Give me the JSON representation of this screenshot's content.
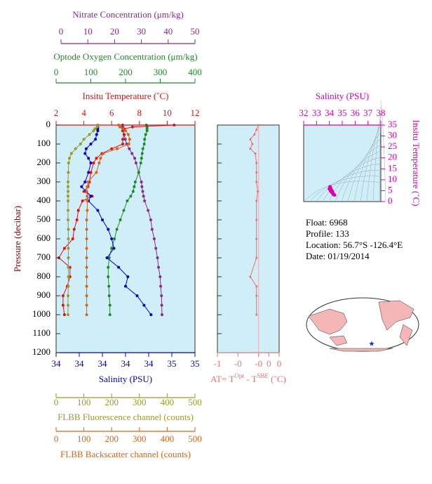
{
  "chart_data": [
    {
      "type": "profile",
      "y_label": "Pressure (decibar)",
      "ylim": [
        0,
        1200
      ],
      "yticks": [
        0,
        100,
        200,
        300,
        400,
        500,
        600,
        700,
        800,
        900,
        1000,
        1100,
        1200
      ],
      "axes": [
        {
          "title": "Nitrate Concentration (μm/kg)",
          "color": "#8b2a8b",
          "xlim": [
            0,
            50
          ],
          "xticks": [
            0,
            10,
            20,
            30,
            40,
            50
          ],
          "pressure": [
            0,
            10,
            20,
            30,
            50,
            75,
            100,
            125,
            150,
            175,
            200,
            250,
            300,
            325,
            350,
            375,
            400,
            450,
            500,
            550,
            600,
            650,
            700,
            750,
            800,
            850,
            900,
            950,
            1000
          ],
          "values": [
            23,
            23,
            23,
            23,
            23.5,
            24,
            24.5,
            25.5,
            26.5,
            27.5,
            28,
            29,
            30,
            30.2,
            30.5,
            30.8,
            31.2,
            32.5,
            33.5,
            34,
            34.8,
            35.4,
            36,
            36.4,
            37,
            37.2,
            37.5,
            37.6,
            37.7
          ]
        },
        {
          "title": "Optode Oxygen Concentration (μm/kg)",
          "color": "#1f8a2a",
          "xlim": [
            0,
            400
          ],
          "xticks": [
            0,
            100,
            200,
            300,
            400
          ],
          "pressure": [
            0,
            10,
            20,
            30,
            50,
            75,
            100,
            125,
            150,
            175,
            200,
            250,
            300,
            325,
            350,
            375,
            400,
            450,
            500,
            550,
            600,
            650,
            700,
            750,
            800,
            850,
            900,
            950,
            1000
          ],
          "values": [
            260,
            262,
            262,
            262,
            258,
            255,
            254,
            250,
            248,
            246,
            244,
            238,
            228,
            225,
            222,
            215,
            205,
            195,
            185,
            175,
            168,
            160,
            153,
            150,
            150,
            152,
            153,
            155,
            155
          ]
        },
        {
          "title": "Insitu Temperature (˚C)",
          "color": "#e01010",
          "xlim": [
            2,
            12
          ],
          "xticks": [
            2,
            4,
            6,
            8,
            10,
            12
          ],
          "pressure": [
            0,
            10,
            20,
            30,
            50,
            75,
            100,
            125,
            150,
            175,
            200,
            250,
            300,
            325,
            350,
            375,
            400,
            450,
            500,
            550,
            600,
            650,
            700,
            750,
            800,
            850,
            900,
            950,
            1000
          ],
          "values": [
            10.5,
            7.5,
            6.9,
            6.8,
            6.9,
            6.8,
            6.8,
            6.0,
            5.3,
            4.9,
            4.7,
            4.5,
            4.4,
            4.3,
            4.0,
            4.6,
            3.9,
            3.6,
            3.5,
            3.3,
            3.2,
            2.6,
            2.2,
            3.0,
            3.0,
            2.8,
            2.5,
            2.5,
            2.6
          ]
        },
        {
          "title": "Salinity (PSU)",
          "color": "#0000cc",
          "xlim": [
            33.6,
            34.8
          ],
          "xticks": [
            {
              "value": 33.6,
              "label": "34"
            },
            {
              "value": 33.8,
              "label": "34"
            },
            {
              "value": 34.0,
              "label": "34"
            },
            {
              "value": 34.2,
              "label": "34"
            },
            {
              "value": 34.4,
              "label": "34"
            },
            {
              "value": 34.6,
              "label": "35"
            },
            {
              "value": 34.8,
              "label": "35"
            }
          ],
          "pressure": [
            0,
            10,
            20,
            30,
            50,
            75,
            100,
            125,
            150,
            175,
            200,
            250,
            300,
            325,
            350,
            375,
            400,
            450,
            500,
            550,
            600,
            650,
            700,
            750,
            800,
            850,
            900,
            950,
            1000
          ],
          "values": [
            33.96,
            33.96,
            33.96,
            33.96,
            33.95,
            33.94,
            33.9,
            33.86,
            33.85,
            33.88,
            33.9,
            33.88,
            33.85,
            33.82,
            33.86,
            33.9,
            33.88,
            33.96,
            34.0,
            34.05,
            34.08,
            34.1,
            34.04,
            34.14,
            34.22,
            34.2,
            34.3,
            34.36,
            34.42
          ]
        },
        {
          "title": "FLBB Fluorescence channel (counts)",
          "color": "#9a9a28",
          "xlim": [
            0,
            500
          ],
          "xticks": [
            0,
            100,
            200,
            300,
            400,
            500
          ],
          "pressure": [
            0,
            10,
            20,
            30,
            50,
            75,
            100,
            125,
            150,
            175,
            200,
            250,
            300,
            325,
            350,
            375,
            400,
            450,
            500,
            550,
            600,
            650,
            700,
            750,
            800,
            850,
            900,
            950,
            1000
          ],
          "values": [
            150,
            148,
            140,
            135,
            120,
            100,
            88,
            70,
            55,
            48,
            45,
            44,
            43,
            43,
            43,
            43,
            43,
            43,
            43,
            44,
            44,
            44,
            44,
            44,
            44,
            44,
            43,
            43,
            43
          ]
        },
        {
          "title": "FLBB Backscatter channel (counts)",
          "color": "#d8641a",
          "xlim": [
            0,
            500
          ],
          "xticks": [
            0,
            100,
            200,
            300,
            400,
            500
          ],
          "pressure": [
            0,
            10,
            20,
            30,
            50,
            75,
            100,
            125,
            150,
            175,
            200,
            250,
            300,
            325,
            350,
            375,
            400,
            450,
            500,
            550,
            600,
            650,
            700,
            750,
            800,
            850,
            900,
            950,
            1000
          ],
          "values": [
            225,
            230,
            240,
            250,
            260,
            265,
            262,
            220,
            170,
            160,
            155,
            145,
            115,
            112,
            110,
            112,
            112,
            112,
            110,
            110,
            110,
            110,
            110,
            110,
            110,
            110,
            110,
            110,
            110
          ]
        }
      ]
    },
    {
      "type": "profile",
      "title_parts": [
        "AT= T",
        "Opt",
        " - T",
        "SBE",
        " (˚C)"
      ],
      "color": "#f07070",
      "ylim": [
        0,
        1200
      ],
      "xlim": [
        -1,
        0.5
      ],
      "xticks": [
        -1,
        {
          "value": -0.5,
          "label": "-0"
        },
        {
          "value": 0,
          "label": "-0"
        },
        {
          "value": 0.25,
          "label": "0"
        },
        {
          "value": 0.5,
          "label": "0"
        }
      ],
      "pressure": [
        0,
        25,
        50,
        75,
        100,
        125,
        150,
        200,
        250,
        300,
        350,
        400,
        500,
        600,
        700,
        800,
        850,
        900,
        1000
      ],
      "values": [
        0,
        -0.05,
        -0.1,
        -0.2,
        -0.15,
        -0.2,
        -0.08,
        -0.05,
        -0.05,
        -0.05,
        -0.02,
        -0.05,
        -0.05,
        -0.05,
        -0.05,
        -0.2,
        -0.05,
        -0.05,
        -0.05
      ]
    },
    {
      "type": "scatter",
      "title": "Salinity (PSU)",
      "y_label": "Insitu Temperature (˚C)",
      "color": "#dd00aa",
      "xlim": [
        32,
        38
      ],
      "xticks": [
        32,
        33,
        34,
        35,
        36,
        37,
        38
      ],
      "ylim": [
        0,
        35
      ],
      "yticks": [
        0,
        5,
        10,
        15,
        20,
        25,
        30,
        35
      ],
      "x": [
        34.0,
        34.05,
        34.1,
        34.2,
        34.25,
        34.3,
        34.35,
        34.4,
        34.3,
        34.2,
        34.1
      ],
      "y": [
        5.8,
        6.8,
        6.0,
        5.0,
        4.3,
        3.5,
        3.2,
        3.0,
        3.4,
        4.2,
        4.8
      ]
    }
  ],
  "float_info": [
    "Float:  6968",
    "Profile:  133",
    "Location:  56.7°S  -126.4°E",
    "Date:  01/19/2014"
  ]
}
